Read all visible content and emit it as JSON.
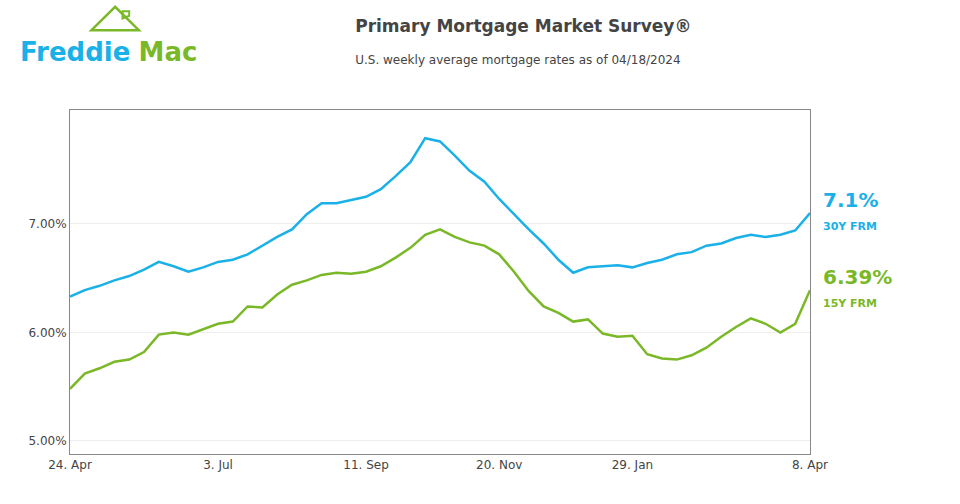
{
  "chart_data": {
    "type": "line",
    "title": "Primary Mortgage Market Survey®",
    "subtitle": "U.S. weekly average mortgage rates as of 04/18/2024",
    "annotations": [
      {
        "text": "Freddie",
        "color": "#1ab0e8"
      },
      {
        "text": "Mac",
        "color": "#7ab828"
      }
    ],
    "categories": [
      "24. Apr",
      null,
      null,
      null,
      null,
      null,
      null,
      null,
      null,
      null,
      "3. Jul",
      null,
      null,
      null,
      null,
      null,
      null,
      null,
      null,
      null,
      "11. Sep",
      null,
      null,
      null,
      null,
      null,
      null,
      null,
      null,
      "20. Nov",
      null,
      null,
      null,
      null,
      null,
      null,
      null,
      null,
      "29. Jan",
      null,
      null,
      null,
      null,
      null,
      null,
      null,
      null,
      null,
      null,
      null,
      "8. Apr"
    ],
    "series": [
      {
        "name": "30Y FRM",
        "color": "#1ab0e8",
        "values": [
          6.33,
          6.39,
          6.43,
          6.48,
          6.52,
          6.58,
          6.65,
          6.61,
          6.56,
          6.6,
          6.65,
          6.67,
          6.72,
          6.8,
          6.88,
          6.95,
          7.09,
          7.19,
          7.19,
          7.22,
          7.25,
          7.32,
          7.44,
          7.57,
          7.79,
          7.76,
          7.63,
          7.49,
          7.39,
          7.23,
          7.09,
          6.95,
          6.82,
          6.67,
          6.55,
          6.6,
          6.61,
          6.62,
          6.6,
          6.64,
          6.67,
          6.72,
          6.74,
          6.8,
          6.82,
          6.87,
          6.9,
          6.88,
          6.9,
          6.94,
          7.1
        ],
        "value_labels": [
          null,
          null,
          null,
          null,
          null,
          null,
          null,
          null,
          null,
          null,
          null,
          null,
          null,
          null,
          null,
          null,
          null,
          null,
          null,
          null,
          null,
          null,
          null,
          null,
          null,
          null,
          null,
          null,
          null,
          null,
          null,
          null,
          null,
          null,
          null,
          null,
          null,
          null,
          null,
          null,
          null,
          null,
          null,
          null,
          null,
          null,
          null,
          null,
          null,
          null,
          "7.1%"
        ]
      },
      {
        "name": "15Y FRM",
        "color": "#7ab828",
        "values": [
          5.48,
          5.62,
          5.67,
          5.73,
          5.75,
          5.82,
          5.98,
          6.0,
          5.98,
          6.03,
          6.08,
          6.1,
          6.24,
          6.23,
          6.35,
          6.44,
          6.48,
          6.53,
          6.55,
          6.54,
          6.56,
          6.61,
          6.69,
          6.78,
          6.9,
          6.95,
          6.88,
          6.83,
          6.8,
          6.72,
          6.56,
          6.38,
          6.24,
          6.18,
          6.1,
          6.12,
          5.99,
          5.96,
          5.97,
          5.8,
          5.76,
          5.75,
          5.79,
          5.86,
          5.96,
          6.05,
          6.13,
          6.08,
          6.0,
          6.08,
          6.39
        ],
        "value_labels": [
          null,
          null,
          null,
          null,
          null,
          null,
          null,
          null,
          null,
          null,
          null,
          null,
          null,
          null,
          null,
          null,
          null,
          null,
          null,
          null,
          null,
          null,
          null,
          null,
          null,
          null,
          null,
          null,
          null,
          null,
          null,
          null,
          null,
          null,
          null,
          null,
          null,
          null,
          null,
          null,
          null,
          null,
          null,
          null,
          null,
          null,
          null,
          null,
          null,
          null,
          "6.39%"
        ]
      }
    ],
    "ylim": [
      4.88,
      8.05
    ],
    "yticks": [
      {
        "value": 5.0,
        "label": "5.00%"
      },
      {
        "value": 6.0,
        "label": "6.00%"
      },
      {
        "value": 7.0,
        "label": "7.00%"
      }
    ],
    "grid": true
  }
}
